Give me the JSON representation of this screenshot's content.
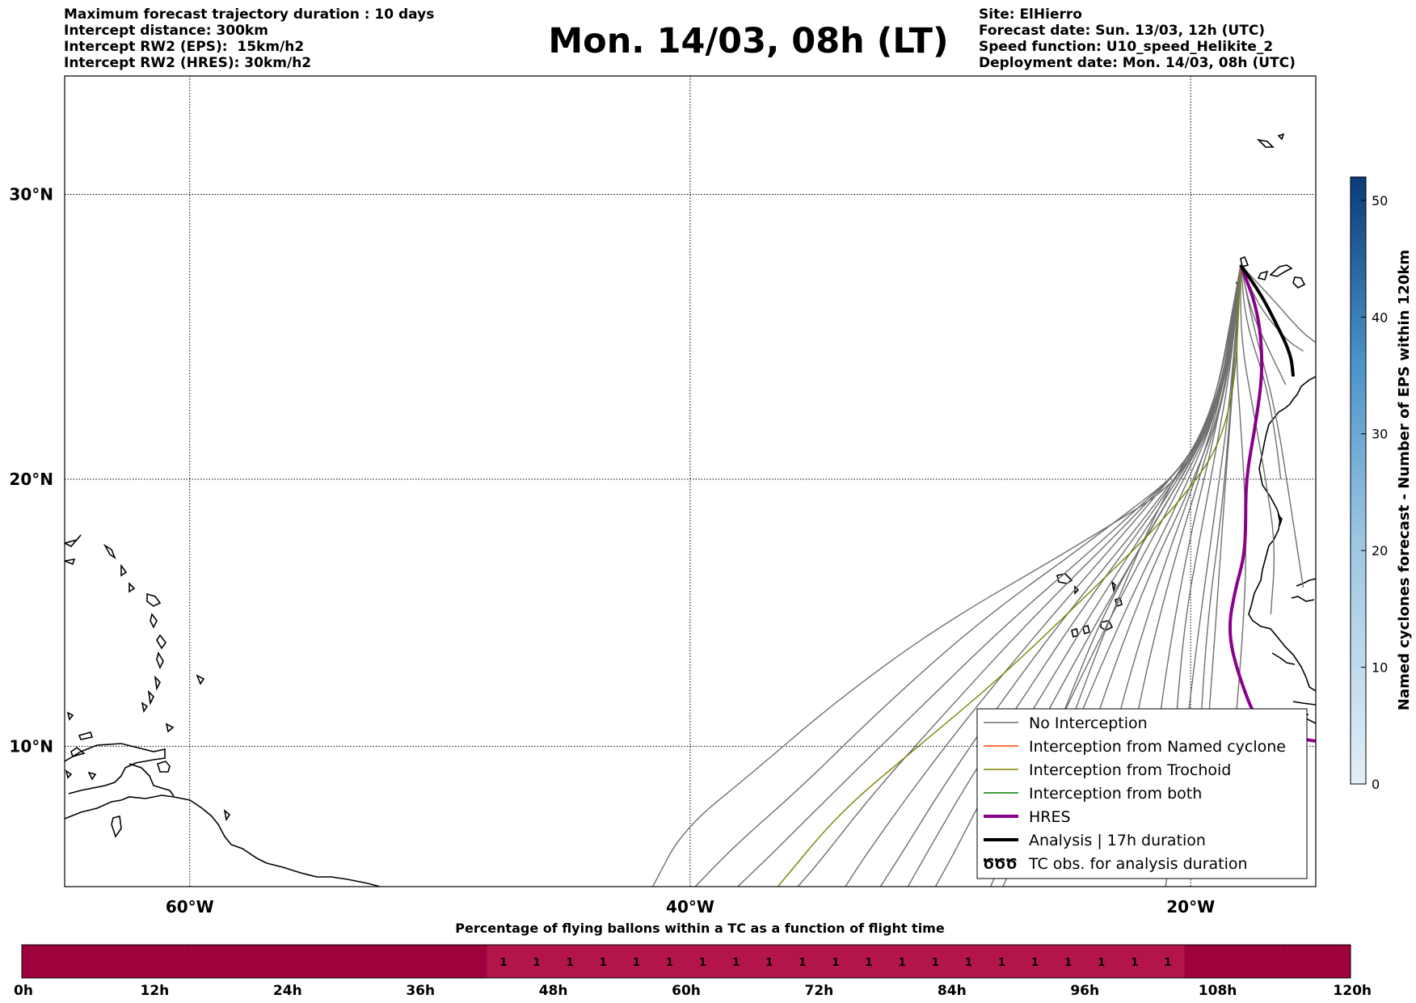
{
  "header": {
    "left_lines": [
      "Maximum forecast trajectory duration : 10 days",
      "Intercept distance: 300km",
      "Intercept RW2 (EPS):  15km/h2",
      "Intercept RW2 (HRES): 30km/h2"
    ],
    "title": "Mon. 14/03, 08h (LT)",
    "right_lines": [
      "Site: ElHierro",
      "Forecast date: Sun. 13/03, 12h (UTC)",
      "Speed function: U10_speed_Helikite_2",
      "Deployment date: Mon. 14/03, 08h (UTC)"
    ]
  },
  "colors": {
    "no_interception": "#707070",
    "named_cyclone": "#ff4500",
    "trochoid": "#808000",
    "both": "#008000",
    "hres": "#8b008b",
    "analysis": "#000000",
    "bar_fill": "#a0003c",
    "bar_cell": "#b3144a"
  },
  "chart_data": [
    {
      "type": "line",
      "subtype": "trajectory map",
      "xlabel_ticks": [
        "60°W",
        "40°W",
        "20°W"
      ],
      "ylabel_ticks": [
        "30°N",
        "20°N",
        "10°N"
      ],
      "x_range": [
        -65,
        -15
      ],
      "y_range": [
        4.6,
        33.9
      ],
      "grid": true,
      "legend_position": "lower-right",
      "legend": [
        {
          "label": "No Interception",
          "style": "thin",
          "color_key": "no_interception"
        },
        {
          "label": "Interception from Named cyclone",
          "style": "thin",
          "color_key": "named_cyclone"
        },
        {
          "label": "Interception from Trochoid",
          "style": "thin",
          "color_key": "trochoid"
        },
        {
          "label": "Interception from both",
          "style": "thin",
          "color_key": "both"
        },
        {
          "label": "HRES",
          "style": "thick",
          "color_key": "hres"
        },
        {
          "label": "Analysis | 17h duration",
          "style": "thick",
          "color_key": "analysis"
        },
        {
          "label": "TC obs. for analysis duration",
          "style": "symbol",
          "color_key": "analysis"
        }
      ],
      "launch_site": {
        "lon": -18.0,
        "lat": 27.6
      },
      "hres_track": [
        [
          -18.0,
          27.6
        ],
        [
          -17.3,
          26.0
        ],
        [
          -17.1,
          24.0
        ],
        [
          -17.4,
          22.0
        ],
        [
          -17.8,
          20.0
        ],
        [
          -17.8,
          18.0
        ],
        [
          -17.9,
          17.0
        ],
        [
          -18.2,
          16.0
        ],
        [
          -18.5,
          14.5
        ],
        [
          -18.2,
          13.0
        ],
        [
          -17.2,
          10.5
        ],
        [
          -15,
          10.2
        ]
      ],
      "analysis_track": [
        [
          -18.0,
          27.6
        ],
        [
          -17.2,
          26.6
        ],
        [
          -16.6,
          25.6
        ],
        [
          -16.0,
          24.5
        ],
        [
          -15.9,
          23.7
        ]
      ],
      "trochoid_track": [
        [
          -18.0,
          27.6
        ],
        [
          -18.3,
          22.0
        ],
        [
          -20.5,
          19.0
        ],
        [
          -24.5,
          15.4
        ],
        [
          -27.5,
          12.7
        ],
        [
          -31,
          9.9
        ],
        [
          -34,
          7.5
        ],
        [
          -36.5,
          4.6
        ]
      ],
      "eps_tracks": [
        [
          [
            -18,
            27.6
          ],
          [
            -17.3,
            26.2
          ],
          [
            -16.2,
            25.0
          ],
          [
            -15.5,
            24.6
          ]
        ],
        [
          [
            -18,
            27.6
          ],
          [
            -17.6,
            26.0
          ],
          [
            -16.8,
            24.5
          ],
          [
            -16.2,
            23.4
          ]
        ],
        [
          [
            -18,
            27.6
          ],
          [
            -17.8,
            25.6
          ],
          [
            -17.0,
            23.5
          ],
          [
            -16.6,
            21.5
          ],
          [
            -16.4,
            20.0
          ]
        ],
        [
          [
            -18,
            27.6
          ],
          [
            -18.0,
            25.0
          ],
          [
            -17.5,
            22.5
          ],
          [
            -17.0,
            20.0
          ],
          [
            -16.6,
            17.5
          ],
          [
            -16.8,
            15.0
          ]
        ],
        [
          [
            -18,
            27.6
          ],
          [
            -18.2,
            24.5
          ],
          [
            -18.0,
            22.0
          ],
          [
            -17.8,
            19.0
          ],
          [
            -17.8,
            16.0
          ],
          [
            -18.1,
            12.0
          ],
          [
            -18.3,
            10.0
          ]
        ],
        [
          [
            -18,
            27.6
          ],
          [
            -18.3,
            24.0
          ],
          [
            -18.5,
            21.5
          ],
          [
            -18.8,
            18.5
          ],
          [
            -19.3,
            15.0
          ],
          [
            -19.6,
            11.0
          ],
          [
            -19.8,
            7.0
          ]
        ],
        [
          [
            -18,
            27.6
          ],
          [
            -18.4,
            24.0
          ],
          [
            -19.0,
            21.0
          ],
          [
            -19.6,
            18.0
          ],
          [
            -20.2,
            15.0
          ],
          [
            -20.6,
            11.0
          ],
          [
            -20.8,
            7.0
          ]
        ],
        [
          [
            -18,
            27.6
          ],
          [
            -18.5,
            24.0
          ],
          [
            -19.2,
            21.0
          ],
          [
            -20.0,
            18.0
          ],
          [
            -20.8,
            14.0
          ],
          [
            -21.4,
            10.0
          ],
          [
            -21.6,
            7.0
          ]
        ],
        [
          [
            -18,
            27.6
          ],
          [
            -18.5,
            23.5
          ],
          [
            -19.5,
            20.5
          ],
          [
            -20.5,
            17.5
          ],
          [
            -21.5,
            14.0
          ],
          [
            -22.3,
            10.5
          ],
          [
            -22.8,
            7.0
          ]
        ],
        [
          [
            -18,
            27.6
          ],
          [
            -18.6,
            23.5
          ],
          [
            -19.8,
            20.0
          ],
          [
            -21.0,
            17.0
          ],
          [
            -22.2,
            13.5
          ],
          [
            -23.2,
            10.0
          ],
          [
            -23.9,
            6.5
          ]
        ],
        [
          [
            -18,
            27.6
          ],
          [
            -18.6,
            23.0
          ],
          [
            -20.0,
            19.7
          ],
          [
            -21.6,
            16.6
          ],
          [
            -23.0,
            13.2
          ],
          [
            -24.2,
            9.8
          ],
          [
            -25.0,
            6.5
          ]
        ],
        [
          [
            -18,
            27.6
          ],
          [
            -18.7,
            23.0
          ],
          [
            -20.3,
            19.5
          ],
          [
            -22.1,
            16.2
          ],
          [
            -23.7,
            12.8
          ],
          [
            -25.1,
            9.6
          ],
          [
            -26.2,
            6.5
          ]
        ],
        [
          [
            -18,
            27.6
          ],
          [
            -18.7,
            22.8
          ],
          [
            -20.6,
            19.4
          ],
          [
            -22.6,
            16.0
          ],
          [
            -24.4,
            12.6
          ],
          [
            -26.0,
            9.4
          ],
          [
            -27.3,
            6.4
          ]
        ],
        [
          [
            -18,
            27.6
          ],
          [
            -18.8,
            22.6
          ],
          [
            -20.9,
            19.2
          ],
          [
            -23.1,
            15.8
          ],
          [
            -25.1,
            12.4
          ],
          [
            -26.9,
            9.2
          ],
          [
            -28.4,
            6.2
          ]
        ],
        [
          [
            -18,
            27.6
          ],
          [
            -18.8,
            22.5
          ],
          [
            -21.2,
            19.0
          ],
          [
            -23.6,
            15.6
          ],
          [
            -25.8,
            12.2
          ],
          [
            -27.8,
            9.0
          ],
          [
            -29.4,
            6.0
          ],
          [
            -30.2,
            4.6
          ]
        ],
        [
          [
            -18,
            27.6
          ],
          [
            -18.9,
            22.3
          ],
          [
            -21.5,
            18.8
          ],
          [
            -24.2,
            15.4
          ],
          [
            -26.6,
            12.0
          ],
          [
            -28.8,
            8.8
          ],
          [
            -30.6,
            5.8
          ],
          [
            -31.3,
            4.6
          ]
        ],
        [
          [
            -18,
            27.6
          ],
          [
            -18.9,
            22.2
          ],
          [
            -21.8,
            18.6
          ],
          [
            -24.8,
            15.2
          ],
          [
            -27.5,
            11.8
          ],
          [
            -29.8,
            8.6
          ],
          [
            -31.6,
            5.8
          ],
          [
            -32.4,
            4.6
          ]
        ],
        [
          [
            -18,
            27.6
          ],
          [
            -19.0,
            22.0
          ],
          [
            -22.2,
            18.5
          ],
          [
            -25.5,
            15.0
          ],
          [
            -28.5,
            11.6
          ],
          [
            -31.0,
            8.5
          ],
          [
            -33.0,
            5.8
          ],
          [
            -33.8,
            4.6
          ]
        ],
        [
          [
            -18,
            27.6
          ],
          [
            -19.0,
            21.8
          ],
          [
            -22.6,
            18.3
          ],
          [
            -26.3,
            14.9
          ],
          [
            -29.7,
            11.4
          ],
          [
            -32.6,
            8.3
          ],
          [
            -34.8,
            5.6
          ],
          [
            -35.7,
            4.6
          ]
        ],
        [
          [
            -18,
            27.6
          ],
          [
            -19.1,
            21.5
          ],
          [
            -23.2,
            18.0
          ],
          [
            -27.3,
            14.7
          ],
          [
            -31.0,
            11.3
          ],
          [
            -34.2,
            8.3
          ],
          [
            -36.8,
            5.8
          ],
          [
            -38.1,
            4.6
          ]
        ],
        [
          [
            -18,
            27.6
          ],
          [
            -19.1,
            21.2
          ],
          [
            -23.9,
            17.8
          ],
          [
            -28.5,
            14.7
          ],
          [
            -32.4,
            11.4
          ],
          [
            -35.6,
            8.4
          ],
          [
            -38.2,
            6.2
          ],
          [
            -39.8,
            4.6
          ]
        ],
        [
          [
            -18,
            27.6
          ],
          [
            -19.2,
            20.6
          ],
          [
            -24.8,
            17.4
          ],
          [
            -30.0,
            14.6
          ],
          [
            -34.2,
            11.7
          ],
          [
            -37.5,
            9.0
          ],
          [
            -40.3,
            6.8
          ],
          [
            -41.5,
            4.6
          ]
        ],
        [
          [
            -18,
            27.6
          ],
          [
            -17.5,
            25.5
          ],
          [
            -16.6,
            22.5
          ],
          [
            -16.0,
            19.0
          ],
          [
            -15.5,
            16.0
          ]
        ],
        [
          [
            -18,
            27.6
          ],
          [
            -18.4,
            23.0
          ],
          [
            -19.0,
            19.0
          ],
          [
            -19.6,
            15.0
          ],
          [
            -20.0,
            12.0
          ],
          [
            -20.5,
            8.0
          ],
          [
            -21.0,
            4.6
          ]
        ],
        [
          [
            -18,
            27.6
          ],
          [
            -18.3,
            23.5
          ],
          [
            -18.6,
            20.0
          ],
          [
            -18.9,
            16.0
          ],
          [
            -19.2,
            12.0
          ],
          [
            -19.6,
            7.0
          ]
        ],
        [
          [
            -18,
            27.6
          ],
          [
            -19.0,
            22.5
          ],
          [
            -21.0,
            19.5
          ],
          [
            -22.5,
            16.5
          ],
          [
            -24.0,
            13.0
          ],
          [
            -25.5,
            9.0
          ],
          [
            -27.5,
            4.6
          ]
        ],
        [
          [
            -18,
            27.6
          ],
          [
            -19.2,
            21.8
          ],
          [
            -21.6,
            18.2
          ],
          [
            -23.5,
            15.0
          ],
          [
            -25.0,
            11.5
          ],
          [
            -26.5,
            7.8
          ],
          [
            -28.0,
            4.6
          ]
        ],
        [
          [
            -18,
            27.6
          ],
          [
            -16.8,
            26.5
          ],
          [
            -15.6,
            25.3
          ],
          [
            -15.0,
            24.9
          ]
        ]
      ]
    },
    {
      "type": "heatmap",
      "title": "Percentage of flying ballons within a TC as a function of flight time",
      "x_ticks": [
        "0h",
        "12h",
        "24h",
        "36h",
        "48h",
        "60h",
        "72h",
        "84h",
        "96h",
        "108h",
        "120h"
      ],
      "x_range_hours": [
        0,
        120
      ],
      "bins_hours": 3,
      "highlight_range_hours": [
        42,
        105
      ],
      "values": [
        "1",
        "1",
        "1",
        "1",
        "1",
        "1",
        "1",
        "1",
        "1",
        "1",
        "1",
        "1",
        "1",
        "1",
        "1",
        "1",
        "1",
        "1",
        "1",
        "1",
        "1"
      ]
    },
    {
      "type": "colorbar",
      "label": "Named cyclones forecast - Number of EPS within 120km",
      "range": [
        0,
        52
      ],
      "ticks": [
        "0",
        "10",
        "20",
        "30",
        "40",
        "50"
      ],
      "color_low": "#e2eef8",
      "color_high": "#0b3b78"
    }
  ]
}
